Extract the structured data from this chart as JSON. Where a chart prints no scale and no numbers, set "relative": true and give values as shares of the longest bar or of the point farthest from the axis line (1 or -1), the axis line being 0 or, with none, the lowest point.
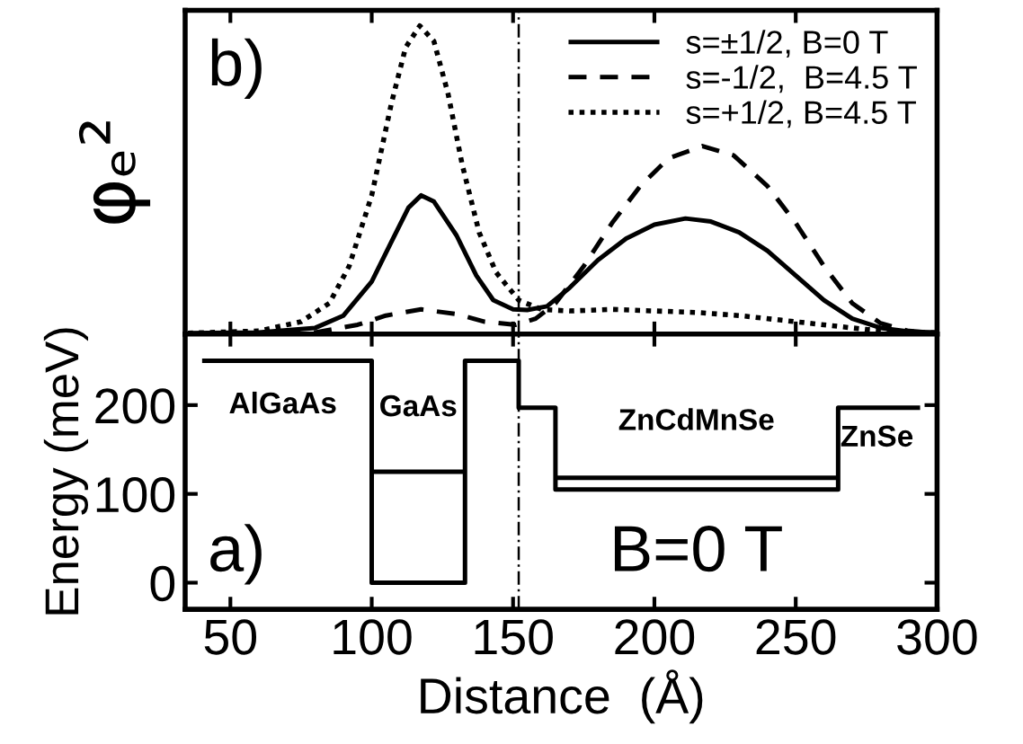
{
  "chart_data": [
    {
      "type": "line",
      "relative": true,
      "ylabel": "φₑ²",
      "xlim": [
        34,
        300
      ],
      "xticks": [
        50,
        100,
        150,
        200,
        250,
        300
      ],
      "tick_labels": false,
      "legend": "top right",
      "grid": false,
      "annotations": [
        "b)"
      ],
      "ref_lines": [
        {
          "axis": "x",
          "value": 152,
          "color": "#000000",
          "line_style": "dashdot"
        }
      ],
      "series": [
        {
          "name": "s=±1/2, B=0 T",
          "color": "#000000",
          "line_style": "solid",
          "x": [
            35,
            60,
            80,
            90,
            100,
            107,
            113,
            117.5,
            122,
            130,
            137,
            143,
            150,
            155,
            162,
            170,
            180,
            190,
            200,
            211,
            220,
            230,
            240,
            250,
            260,
            270,
            280,
            290,
            300
          ],
          "values": [
            0.003,
            0.005,
            0.02,
            0.06,
            0.17,
            0.3,
            0.41,
            0.45,
            0.43,
            0.32,
            0.19,
            0.11,
            0.08,
            0.078,
            0.09,
            0.15,
            0.24,
            0.31,
            0.355,
            0.375,
            0.365,
            0.33,
            0.27,
            0.19,
            0.11,
            0.05,
            0.02,
            0.008,
            0.005
          ]
        },
        {
          "name": "s=-1/2,  B=4.5 T",
          "color": "#000000",
          "line_style": "dashed",
          "x": [
            35,
            80,
            95,
            105,
            117.5,
            130,
            140,
            151,
            158,
            165,
            175,
            185,
            195,
            205,
            217,
            228,
            240,
            250,
            260,
            270,
            280,
            290,
            300
          ],
          "values": [
            0,
            0.005,
            0.03,
            0.06,
            0.08,
            0.065,
            0.04,
            0.03,
            0.05,
            0.1,
            0.22,
            0.36,
            0.48,
            0.57,
            0.61,
            0.58,
            0.48,
            0.36,
            0.22,
            0.1,
            0.035,
            0.01,
            0.003
          ]
        },
        {
          "name": "s=+1/2, B=4.5 T",
          "color": "#000000",
          "line_style": "dotted",
          "x": [
            35,
            60,
            75,
            85,
            92,
            100,
            107,
            112,
            117,
            122,
            127,
            132,
            138,
            144,
            152,
            160,
            170,
            185,
            200,
            215,
            230,
            245,
            260,
            275,
            290,
            300
          ],
          "values": [
            0.003,
            0.01,
            0.04,
            0.1,
            0.22,
            0.45,
            0.75,
            0.93,
            1.0,
            0.95,
            0.78,
            0.55,
            0.33,
            0.2,
            0.11,
            0.08,
            0.075,
            0.08,
            0.075,
            0.07,
            0.06,
            0.045,
            0.03,
            0.015,
            0.006,
            0.004
          ]
        }
      ]
    },
    {
      "type": "line",
      "xlabel": "Distance  (Å)",
      "ylabel": "Energy (meV)",
      "xlim": [
        34,
        300
      ],
      "xticks": [
        50,
        100,
        150,
        200,
        250,
        300
      ],
      "ylim": [
        -30,
        280
      ],
      "yticks": [
        0,
        100,
        200
      ],
      "legend": false,
      "grid": false,
      "annotations": [
        "a)",
        "B=0 T",
        "AlGaAs",
        "GaAs",
        "ZnCdMnSe",
        "ZnSe"
      ],
      "ref_lines": [
        {
          "axis": "x",
          "value": 152,
          "color": "#000000",
          "line_style": "dashdot"
        }
      ],
      "series": [
        {
          "color": "#000000",
          "line_style": "solid",
          "x": [
            40,
            100,
            100,
            133,
            133,
            152,
            152,
            165,
            165,
            265,
            265,
            294
          ],
          "values": [
            250,
            250,
            0,
            0,
            250,
            250,
            197,
            197,
            105,
            105,
            197,
            197
          ]
        },
        {
          "color": "#000000",
          "line_style": "solid",
          "x": [
            100,
            133
          ],
          "values": [
            125,
            125
          ]
        },
        {
          "color": "#000000",
          "line_style": "solid",
          "x": [
            165,
            265
          ],
          "values": [
            118,
            118
          ]
        }
      ]
    }
  ]
}
